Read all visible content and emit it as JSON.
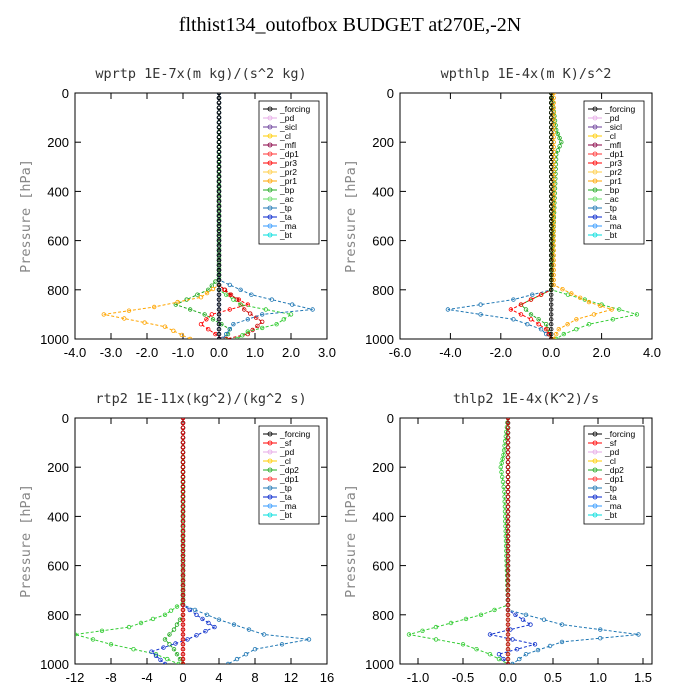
{
  "figure": {
    "title": "flthist134_outofbox  BUDGET at270E,-2N"
  },
  "chart_data": [
    {
      "type": "line",
      "title": "wprtp  1E-7x(m kg)/(s^2 kg)",
      "ylabel": "Pressure [hPa]",
      "xlim": [
        -4.0,
        3.0
      ],
      "ylim": [
        1000,
        0
      ],
      "xticks": [
        "-4.0",
        "-3.0",
        "-2.0",
        "-1.0",
        "0.0",
        "1.0",
        "2.0",
        "3.0"
      ],
      "xtick_values": [
        -4,
        -3,
        -2,
        -1,
        0,
        1,
        2,
        3
      ],
      "yticks": [
        "0",
        "200",
        "400",
        "600",
        "800",
        "1000"
      ],
      "ytick_values": [
        0,
        200,
        400,
        600,
        800,
        1000
      ],
      "legend_position": "top-right",
      "legend_entries": [
        "_forcing",
        "_pd",
        "_sicl",
        "_cl",
        "_mfl",
        "_dp1",
        "_pr3",
        "_pr2",
        "_pr1",
        "_bp",
        "_ac",
        "_tp",
        "_ta",
        "_ma",
        "_bt"
      ],
      "grid": false,
      "series": [
        {
          "name": "_bp",
          "color": "#22aa22",
          "p": [
            0,
            750,
            800,
            860,
            900,
            960,
            1000
          ],
          "x": [
            0,
            0,
            -0.3,
            -1.2,
            -0.4,
            0.3,
            0.2
          ]
        },
        {
          "name": "_pr1",
          "color": "#ffa500",
          "p": [
            0,
            780,
            830,
            870,
            900,
            950,
            1000
          ],
          "x": [
            0,
            0,
            -0.5,
            -1.8,
            -3.2,
            -1.5,
            -0.8
          ]
        },
        {
          "name": "_pr3",
          "color": "#ff0000",
          "p": [
            0,
            780,
            820,
            860,
            900,
            940,
            1000
          ],
          "x": [
            0,
            0,
            0.3,
            0.8,
            -0.2,
            -0.5,
            0.1
          ]
        },
        {
          "name": "_dp1",
          "color": "#cc0000",
          "p": [
            0,
            780,
            840,
            880,
            930,
            980,
            1000
          ],
          "x": [
            0,
            0,
            0.5,
            0.7,
            1.2,
            0.8,
            0.2
          ]
        },
        {
          "name": "_ac",
          "color": "#33cc33",
          "p": [
            0,
            800,
            860,
            900,
            940,
            970,
            1000
          ],
          "x": [
            0,
            0,
            0.6,
            2.0,
            1.6,
            0.8,
            0.5
          ]
        },
        {
          "name": "_tp",
          "color": "#1f77b4",
          "p": [
            0,
            760,
            820,
            880,
            900,
            940,
            1000
          ],
          "x": [
            0,
            0,
            0.9,
            2.6,
            1.2,
            0.4,
            0.1
          ]
        },
        {
          "name": "_ma",
          "color": "#0044cc",
          "p": [
            0,
            1000
          ],
          "x": [
            0,
            0
          ]
        },
        {
          "name": "_forcing",
          "color": "#000000",
          "p": [
            0,
            1000
          ],
          "x": [
            0,
            0
          ]
        }
      ]
    },
    {
      "type": "line",
      "title": "wpthlp  1E-4x(m K)/s^2",
      "ylabel": "Pressure [hPa]",
      "xlim": [
        -6.0,
        4.0
      ],
      "ylim": [
        1000,
        0
      ],
      "xticks": [
        "-6.0",
        "-4.0",
        "-2.0",
        "0.0",
        "2.0",
        "4.0"
      ],
      "xtick_values": [
        -6,
        -4,
        -2,
        0,
        2,
        4
      ],
      "yticks": [
        "0",
        "200",
        "400",
        "600",
        "800",
        "1000"
      ],
      "ytick_values": [
        0,
        200,
        400,
        600,
        800,
        1000
      ],
      "legend_position": "top-right",
      "legend_entries": [
        "_forcing",
        "_pd",
        "_sicl",
        "_cl",
        "_mfl",
        "_dp1",
        "_pr3",
        "_pr2",
        "_pr1",
        "_bp",
        "_ac",
        "_tp",
        "_ta",
        "_ma",
        "_bt"
      ],
      "grid": false,
      "series": [
        {
          "name": "_bp",
          "color": "#22aa22",
          "p": [
            0,
            150,
            200,
            250,
            800,
            860,
            900,
            940,
            1000
          ],
          "x": [
            0,
            0.2,
            0.4,
            0.2,
            0,
            -1.2,
            -0.8,
            -0.2,
            0
          ]
        },
        {
          "name": "_tp",
          "color": "#1f77b4",
          "p": [
            0,
            800,
            840,
            880,
            920,
            960,
            1000
          ],
          "x": [
            0,
            0,
            -1.5,
            -4.1,
            -1.5,
            -0.4,
            0
          ]
        },
        {
          "name": "_dp1",
          "color": "#ff0000",
          "p": [
            0,
            800,
            840,
            880,
            920,
            960,
            1000
          ],
          "x": [
            0,
            0,
            -0.8,
            -1.6,
            -0.8,
            -0.2,
            0
          ]
        },
        {
          "name": "_ac",
          "color": "#33cc33",
          "p": [
            0,
            800,
            860,
            900,
            940,
            980,
            1000
          ],
          "x": [
            0,
            0,
            2.0,
            3.4,
            1.5,
            0.5,
            0.2
          ]
        },
        {
          "name": "_pr1",
          "color": "#ffa500",
          "p": [
            0,
            780,
            850,
            880,
            920,
            960,
            1000
          ],
          "x": [
            0.1,
            0.1,
            1.5,
            2.4,
            1.0,
            0.3,
            0.1
          ]
        },
        {
          "name": "_forcing",
          "color": "#000000",
          "p": [
            0,
            1000
          ],
          "x": [
            0,
            0
          ]
        }
      ]
    },
    {
      "type": "line",
      "title": "rtp2  1E-11x(kg^2)/(kg^2 s)",
      "ylabel": "Pressure [hPa]",
      "xlim": [
        -12,
        16
      ],
      "ylim": [
        1000,
        0
      ],
      "xticks": [
        "-12",
        "-8",
        "-4",
        "0",
        "4",
        "8",
        "12",
        "16"
      ],
      "xtick_values": [
        -12,
        -8,
        -4,
        0,
        4,
        8,
        12,
        16
      ],
      "yticks": [
        "0",
        "200",
        "400",
        "600",
        "800",
        "1000"
      ],
      "ytick_values": [
        0,
        200,
        400,
        600,
        800,
        1000
      ],
      "legend_position": "top-right",
      "legend_entries": [
        "_forcing",
        "_sf",
        "_pd",
        "_cl",
        "_dp2",
        "_dp1",
        "_tp",
        "_ta",
        "_ma",
        "_bt"
      ],
      "grid": false,
      "series": [
        {
          "name": "_dp1",
          "color": "#33cc33",
          "p": [
            0,
            750,
            800,
            850,
            880,
            920,
            960,
            1000
          ],
          "x": [
            0,
            0,
            -2,
            -6,
            -12,
            -8,
            -3,
            -0.5
          ]
        },
        {
          "name": "_dp2",
          "color": "#22aa22",
          "p": [
            0,
            800,
            860,
            900,
            940,
            1000
          ],
          "x": [
            0,
            0,
            -1,
            -2,
            -1,
            0
          ]
        },
        {
          "name": "_ta",
          "color": "#1133cc",
          "p": [
            0,
            760,
            800,
            850,
            900,
            950,
            1000
          ],
          "x": [
            0,
            0,
            1.5,
            3.5,
            0.5,
            -3.5,
            -2
          ]
        },
        {
          "name": "_tp",
          "color": "#1f77b4",
          "p": [
            0,
            760,
            820,
            880,
            900,
            940,
            1000
          ],
          "x": [
            0,
            0,
            4,
            9,
            14,
            8,
            5
          ]
        },
        {
          "name": "_sf",
          "color": "#ff0000",
          "p": [
            0,
            1000
          ],
          "x": [
            0,
            0
          ]
        },
        {
          "name": "_forcing",
          "color": "#cc0000",
          "p": [
            0,
            1000
          ],
          "x": [
            0,
            0
          ]
        }
      ]
    },
    {
      "type": "line",
      "title": "thlp2  1E-4x(K^2)/s",
      "ylabel": "Pressure [hPa]",
      "xlim": [
        -1.2,
        1.6
      ],
      "ylim": [
        1000,
        0
      ],
      "xticks": [
        "-1.0",
        "-0.5",
        "0.0",
        "0.5",
        "1.0",
        "1.5"
      ],
      "xtick_values": [
        -1.0,
        -0.5,
        0.0,
        0.5,
        1.0,
        1.5
      ],
      "yticks": [
        "0",
        "200",
        "400",
        "600",
        "800",
        "1000"
      ],
      "ytick_values": [
        0,
        200,
        400,
        600,
        800,
        1000
      ],
      "legend_position": "top-right",
      "legend_entries": [
        "_forcing",
        "_sf",
        "_pd",
        "_cl",
        "_dp2",
        "_dp1",
        "_tp",
        "_ta",
        "_ma",
        "_bt"
      ],
      "grid": false,
      "series": [
        {
          "name": "_dp1",
          "color": "#33cc33",
          "p": [
            0,
            150,
            200,
            300,
            760,
            800,
            850,
            880,
            920,
            960,
            1000
          ],
          "x": [
            0,
            -0.05,
            -0.08,
            -0.04,
            0,
            -0.3,
            -0.8,
            -1.1,
            -0.5,
            -0.2,
            0
          ]
        },
        {
          "name": "_ta",
          "color": "#1133cc",
          "p": [
            0,
            780,
            840,
            880,
            920,
            960,
            1000
          ],
          "x": [
            0,
            0,
            0.25,
            -0.2,
            0.3,
            -0.1,
            0
          ]
        },
        {
          "name": "_tp",
          "color": "#1f77b4",
          "p": [
            0,
            780,
            840,
            880,
            910,
            960,
            1000
          ],
          "x": [
            0,
            0,
            0.6,
            1.45,
            0.6,
            0.2,
            0.05
          ]
        },
        {
          "name": "_dp2",
          "color": "#22aa22",
          "p": [
            0,
            1000
          ],
          "x": [
            0,
            0
          ]
        },
        {
          "name": "_forcing",
          "color": "#cc0000",
          "p": [
            0,
            1000
          ],
          "x": [
            0,
            0
          ]
        }
      ]
    }
  ]
}
